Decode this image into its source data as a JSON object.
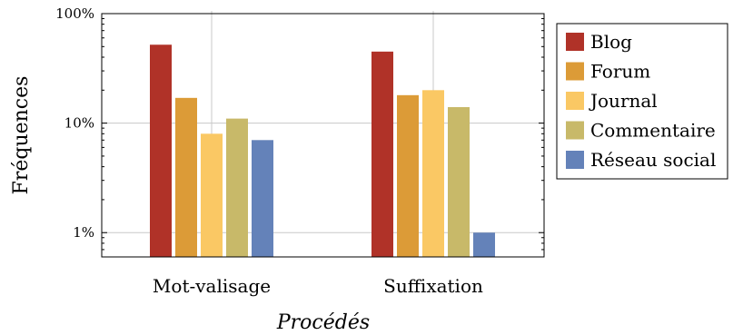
{
  "chart_data": {
    "type": "bar",
    "title": "",
    "xlabel": "Procédés",
    "ylabel": "Fréquences",
    "yscale": "log",
    "ylim": [
      0.6,
      100
    ],
    "yticks": [
      {
        "value": 1,
        "label": "1%"
      },
      {
        "value": 10,
        "label": "10%"
      },
      {
        "value": 100,
        "label": "100%"
      }
    ],
    "categories": [
      "Mot-valisage",
      "Suffixation"
    ],
    "series": [
      {
        "name": "Blog",
        "color": "#b03228",
        "values": [
          52,
          45
        ]
      },
      {
        "name": "Forum",
        "color": "#dc9b37",
        "values": [
          17,
          18
        ]
      },
      {
        "name": "Journal",
        "color": "#fac864",
        "values": [
          8,
          20
        ]
      },
      {
        "name": "Commentaire",
        "color": "#c8b969",
        "values": [
          11,
          14
        ]
      },
      {
        "name": "Réseau social",
        "color": "#6482b9",
        "values": [
          7,
          1
        ]
      }
    ],
    "grid": true,
    "legend_position": "right"
  }
}
